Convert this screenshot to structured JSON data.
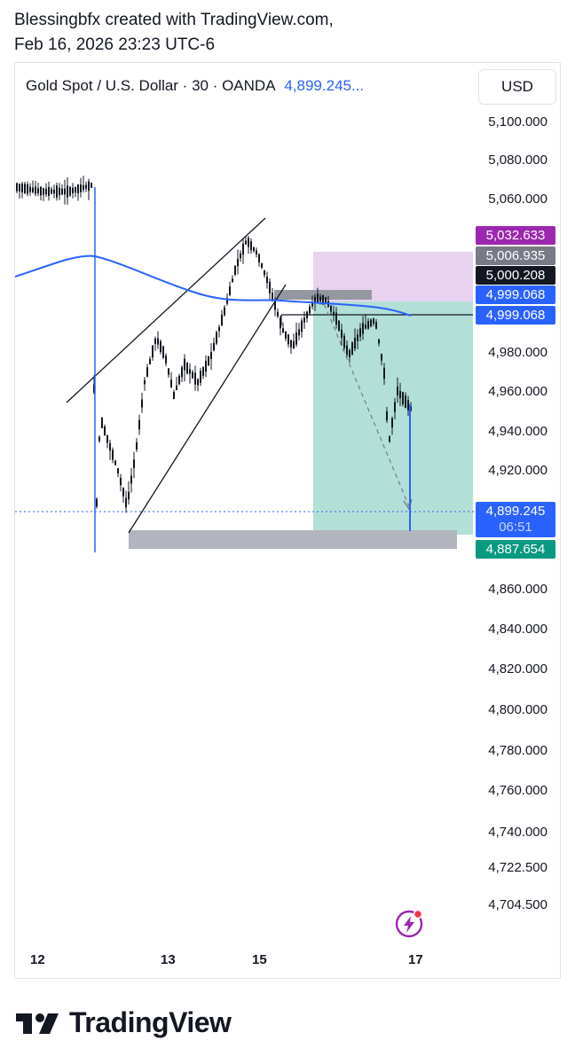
{
  "caption": {
    "line1": "Blessingbfx created with TradingView.com,",
    "line2": "Feb 16, 2026 23:23 UTC-6"
  },
  "header": {
    "symbol": "Gold Spot / U.S. Dollar · 30 · OANDA",
    "price": "4,899.245...",
    "currency_button": "USD"
  },
  "price_axis": [
    "5,100.000",
    "5,080.000",
    "5,060.000",
    "4,980.000",
    "4,960.000",
    "4,940.000",
    "4,920.000",
    "4,860.000",
    "4,840.000",
    "4,820.000",
    "4,800.000",
    "4,780.000",
    "4,760.000",
    "4,740.000",
    "4,722.500",
    "4,704.500"
  ],
  "price_tags": [
    {
      "value": "5,032.633",
      "color": "#9c27b0"
    },
    {
      "value": "5,006.935",
      "color": "#787b86"
    },
    {
      "value": "5,000.208",
      "color": "#131722"
    },
    {
      "value": "4,999.068",
      "color": "#2962ff"
    },
    {
      "value": "4,999.068",
      "color": "#2962ff"
    },
    {
      "value": "4,887.654",
      "color": "#089981"
    }
  ],
  "current_price": {
    "value": "4,899.245",
    "countdown": "06:51",
    "color": "#2962ff"
  },
  "time_axis": [
    "12",
    "13",
    "15",
    "17"
  ],
  "colors": {
    "candle": "#131722",
    "moving_average": "#2962ff",
    "stop_zone": "#e8d2f0",
    "target_zone": "#b2e0d6",
    "support_zone": "#b2b5be"
  },
  "footer": {
    "brand": "TradingView"
  }
}
